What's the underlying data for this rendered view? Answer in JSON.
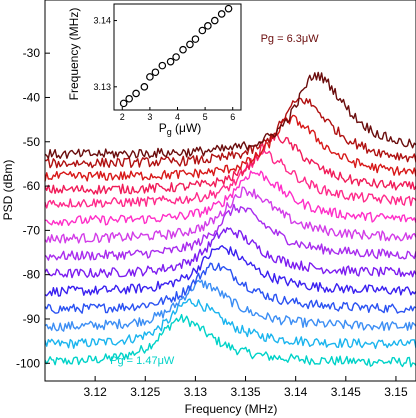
{
  "chart_data": [
    {
      "type": "line",
      "xlabel": "Frequency (MHz)",
      "ylabel": "PSD (dBm)",
      "xlim": [
        3.115,
        3.152
      ],
      "ylim": [
        -104,
        -18
      ],
      "xticks": [
        3.12,
        3.125,
        3.13,
        3.135,
        3.14,
        3.145,
        3.15
      ],
      "xtick_labels": [
        "3.12",
        "3.125",
        "3.13",
        "3.135",
        "3.14",
        "3.145",
        "3.15"
      ],
      "yticks": [
        -100,
        -90,
        -80,
        -70,
        -60,
        -50,
        -40,
        -30
      ],
      "ytick_labels": [
        "-100",
        "-90",
        "-80",
        "-70",
        "-60",
        "-50",
        "-40",
        "-30"
      ],
      "series": [
        {
          "color": "#00d2c8",
          "baseline": -100,
          "peak_x": 3.1285,
          "peak_y": -90.0,
          "width": 0.003
        },
        {
          "color": "#1ab4ee",
          "baseline": -96,
          "peak_x": 3.1295,
          "peak_y": -86.0,
          "width": 0.003
        },
        {
          "color": "#3c8ef4",
          "baseline": -92,
          "peak_x": 3.1305,
          "peak_y": -82.0,
          "width": 0.003
        },
        {
          "color": "#2a52f2",
          "baseline": -88,
          "peak_x": 3.1318,
          "peak_y": -78.0,
          "width": 0.003
        },
        {
          "color": "#3a20f0",
          "baseline": -84,
          "peak_x": 3.1325,
          "peak_y": -74.0,
          "width": 0.003
        },
        {
          "color": "#7d1df0",
          "baseline": -80,
          "peak_x": 3.1332,
          "peak_y": -70.0,
          "width": 0.003
        },
        {
          "color": "#a82cee",
          "baseline": -76,
          "peak_x": 3.1342,
          "peak_y": -65.0,
          "width": 0.003
        },
        {
          "color": "#d23ce8",
          "baseline": -72,
          "peak_x": 3.135,
          "peak_y": -61.0,
          "width": 0.003
        },
        {
          "color": "#ff2ec8",
          "baseline": -68,
          "peak_x": 3.1358,
          "peak_y": -57.0,
          "width": 0.003
        },
        {
          "color": "#ff2a8a",
          "baseline": -64,
          "peak_x": 3.1368,
          "peak_y": -53.0,
          "width": 0.003
        },
        {
          "color": "#f01c58",
          "baseline": -61,
          "peak_x": 3.138,
          "peak_y": -49.0,
          "width": 0.003
        },
        {
          "color": "#d81818",
          "baseline": -58,
          "peak_x": 3.1395,
          "peak_y": -45.0,
          "width": 0.003
        },
        {
          "color": "#b01010",
          "baseline": -55,
          "peak_x": 3.1405,
          "peak_y": -40.5,
          "width": 0.003
        },
        {
          "color": "#6a0c0c",
          "baseline": -53,
          "peak_x": 3.142,
          "peak_y": -35.0,
          "width": 0.003
        }
      ],
      "annotations": [
        {
          "text": "Pg = 6.3μW",
          "x": 3.1365,
          "y": -27.5,
          "color": "#6a0c0c"
        },
        {
          "text": "Pg = 1.47μW",
          "x": 3.1215,
          "y": -100.2,
          "color": "#00d2c8"
        }
      ]
    },
    {
      "type": "scatter",
      "xlabel": "P",
      "xlabel_sub": "g",
      "xlabel_unit": " (μW)",
      "ylabel": "Frequency (MHz)",
      "xlim": [
        1.7,
        6.3
      ],
      "ylim": [
        3.1265,
        3.1425
      ],
      "xticks": [
        2,
        3,
        4,
        5,
        6
      ],
      "xtick_labels": [
        "2",
        "3",
        "4",
        "5",
        "6"
      ],
      "yticks": [
        3.13,
        3.14
      ],
      "ytick_labels": [
        "3.13",
        "3.14"
      ],
      "x": [
        2.05,
        2.25,
        2.5,
        2.8,
        3.0,
        3.2,
        3.45,
        3.75,
        3.95,
        4.2,
        4.45,
        4.65,
        4.9,
        5.1,
        5.35,
        5.6,
        5.85
      ],
      "y": [
        3.1275,
        3.1282,
        3.129,
        3.13,
        3.1315,
        3.1322,
        3.1332,
        3.1338,
        3.1345,
        3.1356,
        3.1364,
        3.1372,
        3.1385,
        3.1392,
        3.14,
        3.141,
        3.1418
      ]
    }
  ]
}
